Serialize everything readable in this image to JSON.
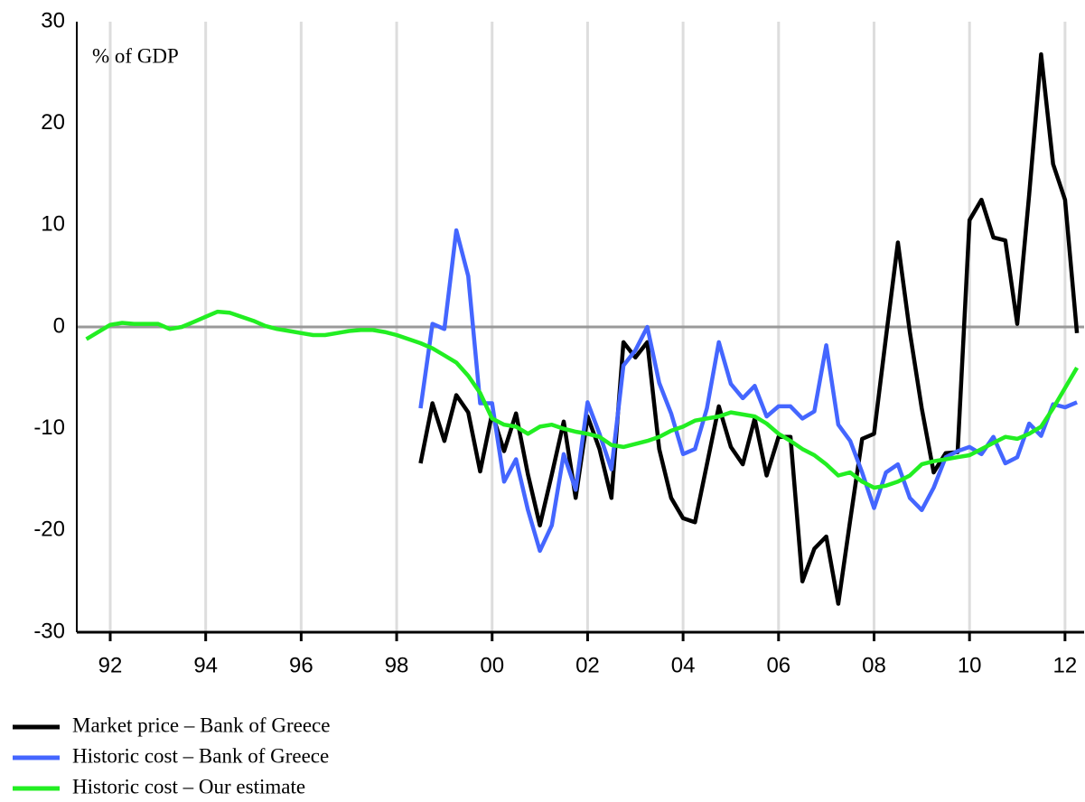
{
  "chart_data": {
    "type": "line",
    "annotation": "% of GDP",
    "x": [
      1991.5,
      1991.75,
      1992,
      1992.25,
      1992.5,
      1992.75,
      1993,
      1993.25,
      1993.5,
      1993.75,
      1994,
      1994.25,
      1994.5,
      1994.75,
      1995,
      1995.25,
      1995.5,
      1995.75,
      1996,
      1996.25,
      1996.5,
      1996.75,
      1997,
      1997.25,
      1997.5,
      1997.75,
      1998,
      1998.25,
      1998.5,
      1998.75,
      1999,
      1999.25,
      1999.5,
      1999.75,
      2000,
      2000.25,
      2000.5,
      2000.75,
      2001,
      2001.25,
      2001.5,
      2001.75,
      2002,
      2002.25,
      2002.5,
      2002.75,
      2003,
      2003.25,
      2003.5,
      2003.75,
      2004,
      2004.25,
      2004.5,
      2004.75,
      2005,
      2005.25,
      2005.5,
      2005.75,
      2006,
      2006.25,
      2006.5,
      2006.75,
      2007,
      2007.25,
      2007.5,
      2007.75,
      2008,
      2008.25,
      2008.5,
      2008.75,
      2009,
      2009.25,
      2009.5,
      2009.75,
      2010,
      2010.25,
      2010.5,
      2010.75,
      2011,
      2011.25,
      2011.5,
      2011.75,
      2012,
      2012.25
    ],
    "series": [
      {
        "name": "Market price – Bank of Greece",
        "color": "#000000",
        "values": [
          null,
          null,
          null,
          null,
          null,
          null,
          null,
          null,
          null,
          null,
          null,
          null,
          null,
          null,
          null,
          null,
          null,
          null,
          null,
          null,
          null,
          null,
          null,
          null,
          null,
          null,
          null,
          null,
          -13.4,
          -7.5,
          -11.2,
          -6.7,
          -8.4,
          -14.2,
          -8.5,
          -12.2,
          -8.5,
          -14.5,
          -19.5,
          -14.5,
          -9.3,
          -16.8,
          -8.8,
          -12,
          -16.8,
          -1.5,
          -3.0,
          -1.5,
          -12,
          -16.8,
          -18.8,
          -19.2,
          -13.5,
          -7.8,
          -11.8,
          -13.5,
          -9,
          -14.6,
          -10.8,
          -10.8,
          -25,
          -21.8,
          -20.6,
          -27.2,
          -19,
          -11,
          -10.5,
          -1,
          8.3,
          -0.5,
          -8,
          -14.3,
          -12.4,
          -12.3,
          10.5,
          12.5,
          8.8,
          8.5,
          0.3,
          13,
          26.8,
          16,
          12.5,
          -0.6
        ]
      },
      {
        "name": "Historic cost – Bank of Greece",
        "color": "#4466ff",
        "values": [
          null,
          null,
          null,
          null,
          null,
          null,
          null,
          null,
          null,
          null,
          null,
          null,
          null,
          null,
          null,
          null,
          null,
          null,
          null,
          null,
          null,
          null,
          null,
          null,
          null,
          null,
          null,
          null,
          -8,
          0.3,
          -0.2,
          9.5,
          5,
          -7.5,
          -7.5,
          -15.2,
          -13,
          -18,
          -22,
          -19.5,
          -12.5,
          -16,
          -7.4,
          -10.5,
          -14,
          -3.8,
          -2.3,
          0,
          -5.5,
          -8.5,
          -12.5,
          -12,
          -8,
          -1.5,
          -5.6,
          -7,
          -5.8,
          -8.8,
          -7.8,
          -7.8,
          -9,
          -8.3,
          -1.8,
          -9.6,
          -11.2,
          -14.3,
          -17.8,
          -14.3,
          -13.5,
          -16.8,
          -18,
          -15.8,
          -12.8,
          -12.2,
          -11.8,
          -12.5,
          -10.8,
          -13.4,
          -12.8,
          -9.5,
          -10.7,
          -7.6,
          -7.9,
          -7.4
        ]
      },
      {
        "name": "Historic cost – Our estimate",
        "color": "#22ee22",
        "values": [
          -1.2,
          -0.5,
          0.2,
          0.4,
          0.3,
          0.3,
          0.3,
          -0.2,
          0,
          0.5,
          1.0,
          1.5,
          1.4,
          1.0,
          0.6,
          0.1,
          -0.2,
          -0.4,
          -0.6,
          -0.8,
          -0.8,
          -0.6,
          -0.4,
          -0.3,
          -0.3,
          -0.5,
          -0.8,
          -1.2,
          -1.6,
          -2.1,
          -2.8,
          -3.5,
          -4.8,
          -6.5,
          -9.0,
          -9.6,
          -9.8,
          -10.5,
          -9.8,
          -9.6,
          -10.0,
          -10.3,
          -10.5,
          -10.8,
          -11.6,
          -11.8,
          -11.5,
          -11.2,
          -10.8,
          -10.2,
          -9.8,
          -9.2,
          -9.0,
          -8.8,
          -8.4,
          -8.6,
          -8.8,
          -9.5,
          -10.5,
          -11.2,
          -12.0,
          -12.6,
          -13.5,
          -14.6,
          -14.3,
          -15.2,
          -15.8,
          -15.6,
          -15.2,
          -14.6,
          -13.5,
          -13.2,
          -13.0,
          -12.8,
          -12.6,
          -12.0,
          -11.4,
          -10.8,
          -11.0,
          -10.5,
          -9.8,
          -8.0,
          -6.0,
          -4.0
        ]
      }
    ],
    "xlim": [
      1991.3,
      2012.4
    ],
    "xticks": [
      {
        "value": 1992,
        "label": "92"
      },
      {
        "value": 1994,
        "label": "94"
      },
      {
        "value": 1996,
        "label": "96"
      },
      {
        "value": 1998,
        "label": "98"
      },
      {
        "value": 2000,
        "label": "00"
      },
      {
        "value": 2002,
        "label": "02"
      },
      {
        "value": 2004,
        "label": "04"
      },
      {
        "value": 2006,
        "label": "06"
      },
      {
        "value": 2008,
        "label": "08"
      },
      {
        "value": 2010,
        "label": "10"
      },
      {
        "value": 2012,
        "label": "12"
      }
    ],
    "ylim": [
      -30,
      30
    ],
    "yticks": [
      -30,
      -20,
      -10,
      0,
      10,
      20,
      30
    ],
    "grid": true,
    "legend": "bottom-left"
  }
}
